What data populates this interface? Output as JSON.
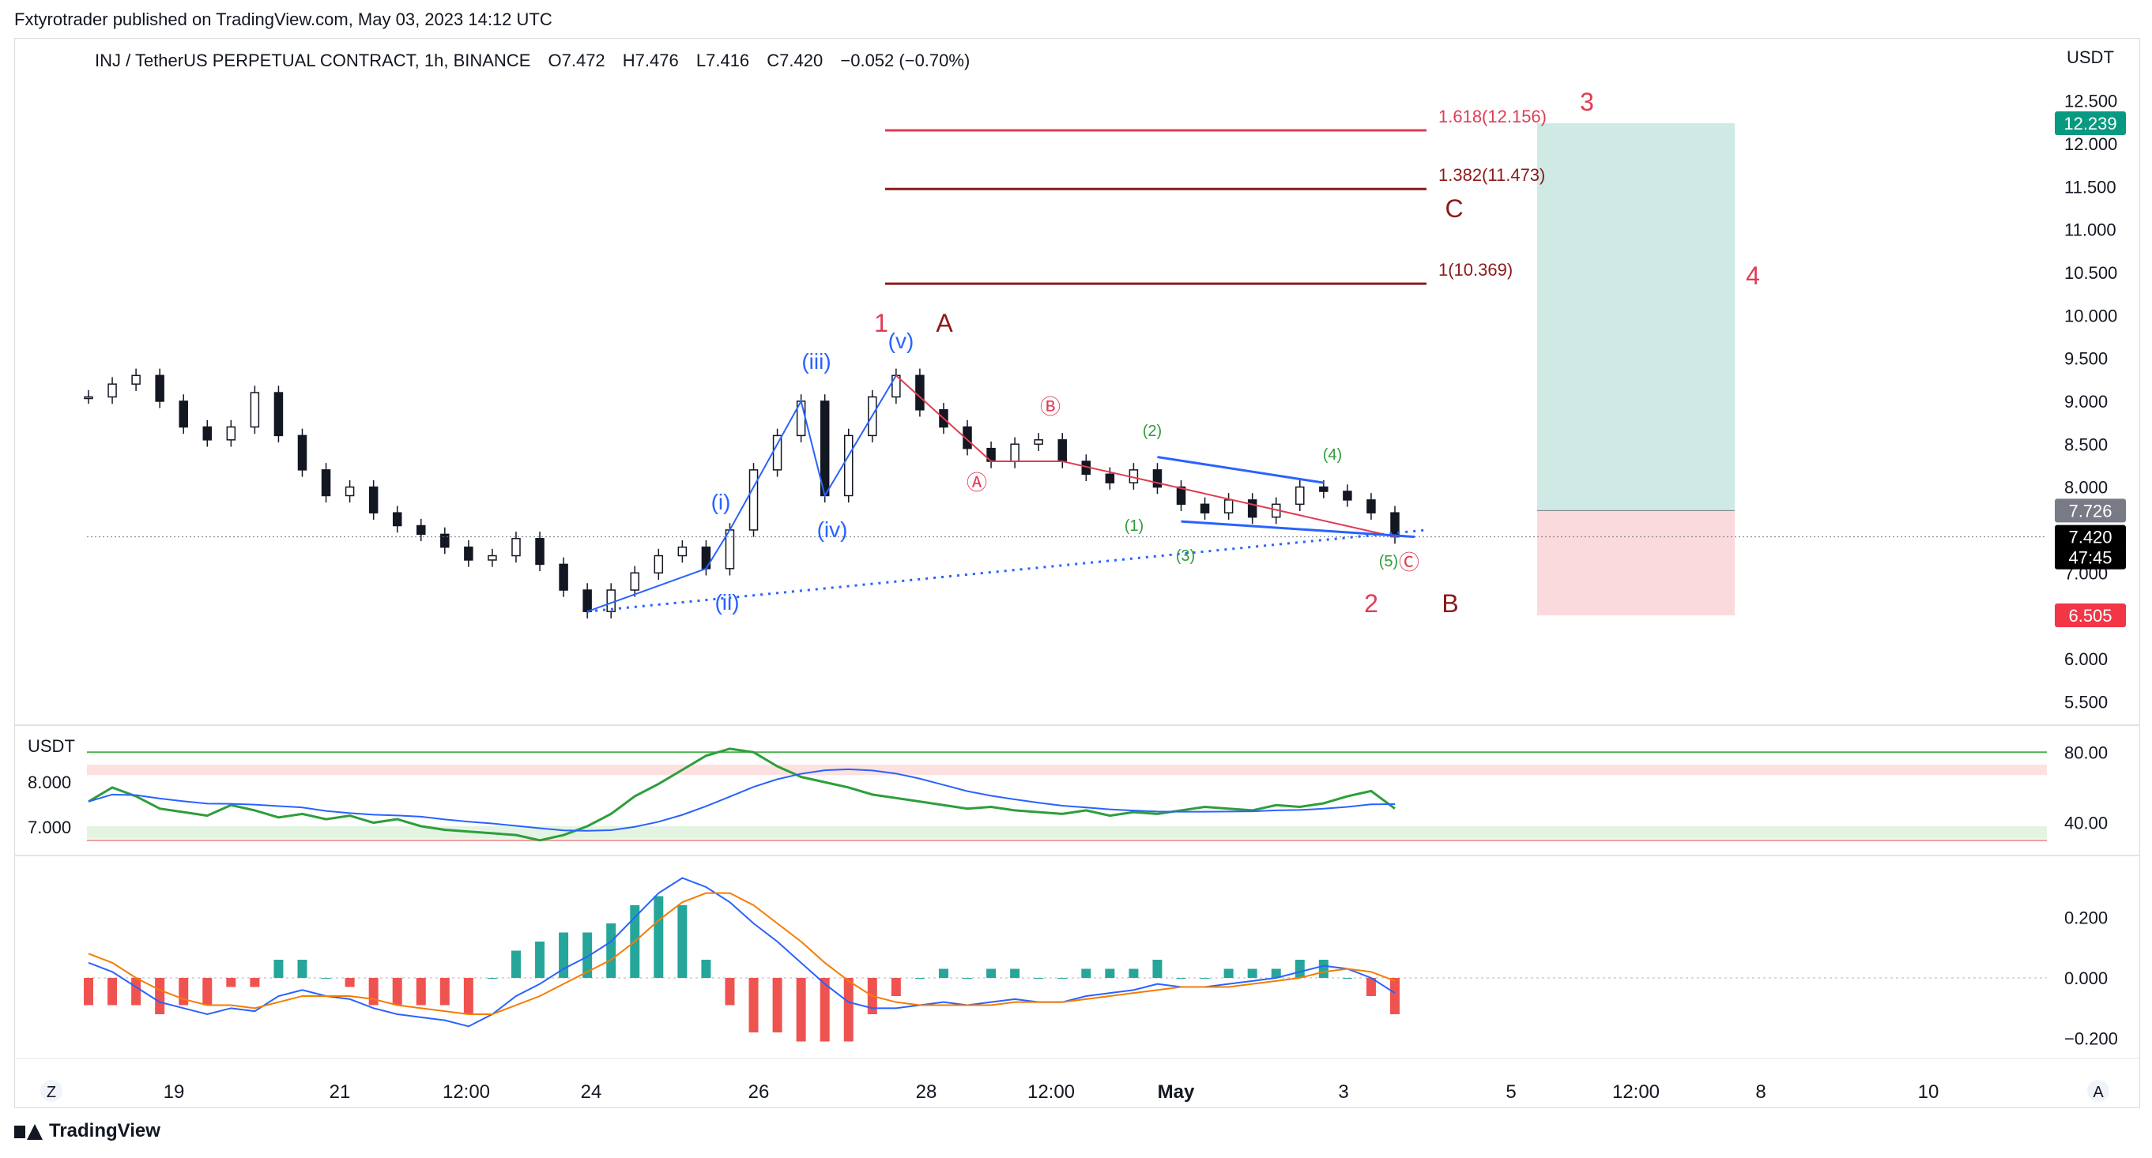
{
  "header": {
    "text": "Fxtyrotrader published on TradingView.com, May 03, 2023 14:12 UTC"
  },
  "footer": {
    "brand": "TradingView"
  },
  "symbol": {
    "name": "INJ / TetherUS PERPETUAL CONTRACT, 1h, BINANCE",
    "open": "O7.472",
    "high": "H7.476",
    "low": "L7.416",
    "close": "C7.420",
    "change": "−0.052 (−0.70%)"
  },
  "colors": {
    "up": "#26a69a",
    "down": "#ef5350",
    "blue": "#2962ff",
    "red": "#e03c52",
    "darkred": "#8b1a1a",
    "green": "#2e9e3a",
    "orange": "#f57c00"
  },
  "chart_data": [
    {
      "type": "candlestick",
      "axis_currency": "USDT",
      "x_ticks": [
        "19",
        "21",
        "12:00",
        "24",
        "26",
        "28",
        "12:00",
        "May",
        "3",
        "5",
        "12:00",
        "8",
        "10"
      ],
      "y_ticks": [
        "12.500",
        "12.000",
        "11.500",
        "11.000",
        "10.500",
        "10.000",
        "9.500",
        "9.000",
        "8.500",
        "8.000",
        "7.000",
        "6.000",
        "5.500"
      ],
      "ylim": [
        5.3,
        12.8
      ],
      "price_series": [
        9.05,
        9.2,
        9.3,
        9.0,
        8.7,
        8.55,
        8.7,
        9.1,
        8.6,
        8.2,
        7.9,
        8.0,
        7.7,
        7.55,
        7.45,
        7.3,
        7.15,
        7.2,
        7.4,
        7.1,
        6.8,
        6.55,
        6.8,
        7.0,
        7.2,
        7.3,
        7.05,
        7.5,
        8.2,
        8.6,
        9.0,
        7.9,
        8.6,
        9.05,
        9.3,
        8.9,
        8.7,
        8.45,
        8.3,
        8.5,
        8.55,
        8.3,
        8.15,
        8.05,
        8.2,
        8.0,
        7.8,
        7.7,
        7.85,
        7.65,
        7.8,
        8.0,
        7.95,
        7.85,
        7.7,
        7.42
      ],
      "price_labels": [
        {
          "value": "12.239",
          "price": 12.239,
          "color": "#089981"
        },
        {
          "value": "7.726",
          "price": 7.726,
          "color": "#787b86"
        },
        {
          "value": "7.420",
          "price": 7.42,
          "color": "#000000"
        },
        {
          "value": "47:45",
          "price": 7.18,
          "color": "#000000"
        },
        {
          "value": "6.505",
          "price": 6.505,
          "color": "#f23645"
        }
      ],
      "fib_levels": [
        {
          "label": "1.618(12.156)",
          "price": 12.156,
          "color": "#e03c52"
        },
        {
          "label": "1.382(11.473)",
          "price": 11.473,
          "color": "#8b1a1a"
        },
        {
          "label": "1(10.369)",
          "price": 10.369,
          "color": "#8b1a1a"
        }
      ],
      "position": {
        "target": 12.239,
        "entry": 7.726,
        "stop": 6.505
      },
      "wave_labels": {
        "red": [
          "1",
          "2",
          "3",
          "4"
        ],
        "darkred": [
          "A",
          "B",
          "C"
        ],
        "blue": [
          "(i)",
          "(ii)",
          "(iii)",
          "(iv)",
          "(v)"
        ],
        "abc": [
          "Ⓐ",
          "Ⓑ",
          "Ⓒ"
        ],
        "green": [
          "(1)",
          "(2)",
          "(3)",
          "(4)",
          "(5)"
        ]
      }
    },
    {
      "type": "line",
      "axis_currency": "USDT",
      "left_ticks": [
        "8.000",
        "7.000"
      ],
      "y_ticks": [
        "80.00",
        "40.00"
      ],
      "ylim": [
        25,
        90
      ],
      "rsi": [
        52,
        60,
        55,
        48,
        46,
        44,
        50,
        47,
        43,
        45,
        42,
        44,
        40,
        42,
        38,
        36,
        35,
        34,
        33,
        30,
        33,
        38,
        45,
        55,
        62,
        70,
        78,
        82,
        80,
        72,
        66,
        63,
        60,
        56,
        54,
        52,
        50,
        48,
        49,
        47,
        46,
        45,
        47,
        44,
        46,
        45,
        47,
        49,
        48,
        47,
        50,
        49,
        51,
        55,
        58,
        48
      ]
    },
    {
      "type": "line",
      "y_ticks": [
        "0.200",
        "0.000",
        "−0.200"
      ],
      "ylim": [
        -0.24,
        0.36
      ],
      "macd": [
        0.05,
        0.02,
        -0.03,
        -0.08,
        -0.1,
        -0.12,
        -0.1,
        -0.11,
        -0.06,
        -0.04,
        -0.06,
        -0.07,
        -0.1,
        -0.12,
        -0.13,
        -0.14,
        -0.16,
        -0.12,
        -0.06,
        -0.02,
        0.03,
        0.07,
        0.12,
        0.2,
        0.28,
        0.33,
        0.3,
        0.25,
        0.18,
        0.12,
        0.05,
        -0.02,
        -0.08,
        -0.1,
        -0.1,
        -0.09,
        -0.08,
        -0.09,
        -0.08,
        -0.07,
        -0.08,
        -0.08,
        -0.06,
        -0.05,
        -0.04,
        -0.02,
        -0.03,
        -0.03,
        -0.02,
        -0.01,
        0.0,
        0.02,
        0.04,
        0.03,
        0.0,
        -0.05
      ],
      "signal": [
        0.08,
        0.05,
        0.0,
        -0.04,
        -0.07,
        -0.09,
        -0.09,
        -0.1,
        -0.08,
        -0.06,
        -0.06,
        -0.06,
        -0.07,
        -0.09,
        -0.1,
        -0.11,
        -0.12,
        -0.12,
        -0.09,
        -0.06,
        -0.02,
        0.02,
        0.06,
        0.12,
        0.19,
        0.25,
        0.28,
        0.28,
        0.24,
        0.18,
        0.12,
        0.05,
        -0.01,
        -0.06,
        -0.08,
        -0.09,
        -0.09,
        -0.09,
        -0.09,
        -0.08,
        -0.08,
        -0.08,
        -0.07,
        -0.06,
        -0.05,
        -0.04,
        -0.03,
        -0.03,
        -0.03,
        -0.02,
        -0.01,
        0.0,
        0.02,
        0.03,
        0.02,
        -0.01
      ]
    }
  ],
  "bottom_bar": {
    "left_button": "Z",
    "right_button": "A"
  }
}
